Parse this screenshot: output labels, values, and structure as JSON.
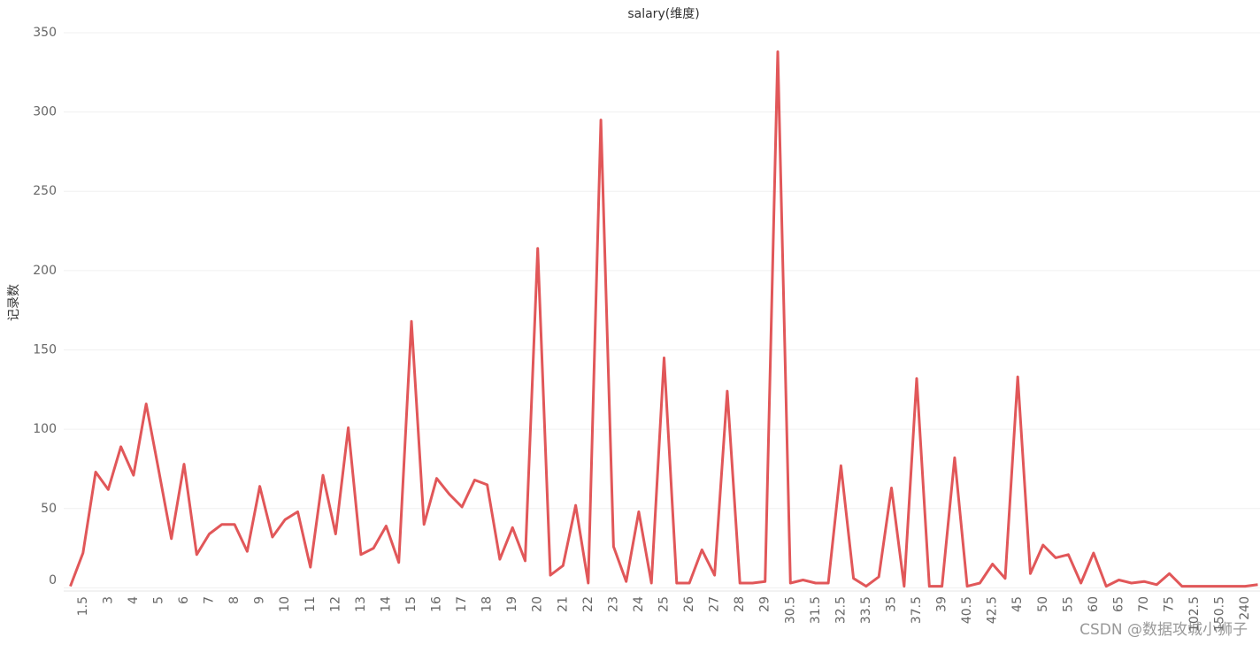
{
  "chart_data": {
    "type": "line",
    "title": "salary(维度)",
    "y_label": "记录数",
    "watermark": "CSDN @数据攻城小狮子",
    "categories": [
      null,
      "1.5",
      null,
      "3",
      null,
      "4",
      null,
      "5",
      null,
      "6",
      null,
      "7",
      null,
      "8",
      null,
      "9",
      null,
      "10",
      null,
      "11",
      null,
      "12",
      null,
      "13",
      null,
      "14",
      null,
      "15",
      null,
      "16",
      null,
      "17",
      null,
      "18",
      null,
      "19",
      null,
      "20",
      null,
      "21",
      null,
      "22",
      null,
      "23",
      null,
      "24",
      null,
      "25",
      null,
      "26",
      null,
      "27",
      null,
      "28",
      null,
      "29",
      null,
      "30.5",
      null,
      "31.5",
      null,
      "32.5",
      null,
      "33.5",
      null,
      "35",
      null,
      "37.5",
      null,
      "39",
      null,
      "40.5",
      null,
      "42.5",
      null,
      "45",
      null,
      "50",
      null,
      "55",
      null,
      "60",
      null,
      "65",
      null,
      "70",
      null,
      "75",
      null,
      "102.5",
      null,
      "150.5",
      null,
      "240",
      null
    ],
    "values": [
      1,
      22,
      73,
      62,
      89,
      71,
      116,
      74,
      31,
      78,
      21,
      34,
      40,
      40,
      23,
      64,
      32,
      43,
      48,
      13,
      71,
      34,
      101,
      21,
      25,
      39,
      16,
      168,
      40,
      69,
      59,
      51,
      68,
      65,
      18,
      38,
      17,
      214,
      8,
      14,
      52,
      3,
      295,
      26,
      4,
      48,
      3,
      145,
      3,
      3,
      24,
      8,
      124,
      3,
      3,
      4,
      338,
      3,
      5,
      3,
      3,
      77,
      6,
      1,
      7,
      63,
      1,
      132,
      1,
      1,
      82,
      1,
      3,
      15,
      6,
      133,
      9,
      27,
      19,
      21,
      3,
      22,
      1,
      5,
      3,
      4,
      2,
      9,
      1,
      1,
      1,
      1,
      1,
      1,
      2
    ],
    "color": "#e15759",
    "ylim": [
      -2,
      355
    ],
    "yticks": [
      0,
      50,
      100,
      150,
      200,
      250,
      300,
      350
    ],
    "grid": true
  }
}
